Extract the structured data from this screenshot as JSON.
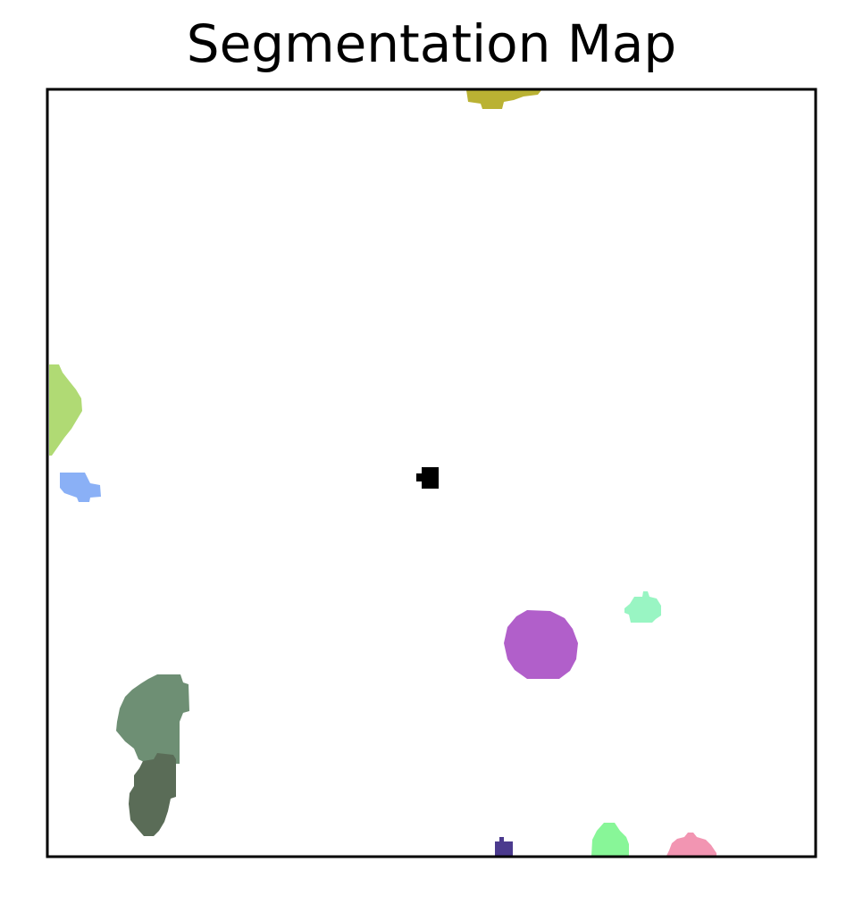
{
  "title": "Segmentation Map",
  "background_color": "#ffffff",
  "frame_color": "#000000",
  "segments": [
    {
      "name": "olive-segment",
      "color": "#bab233"
    },
    {
      "name": "lime-segment",
      "color": "#b0da74"
    },
    {
      "name": "blue-segment",
      "color": "#8ab0f6"
    },
    {
      "name": "black-segment",
      "color": "#000000"
    },
    {
      "name": "purple-segment",
      "color": "#b15fca"
    },
    {
      "name": "mint-segment",
      "color": "#99f5c3"
    },
    {
      "name": "sage-segment",
      "color": "#6e8f74"
    },
    {
      "name": "dark-green-segment",
      "color": "#5a6c57"
    },
    {
      "name": "indigo-segment",
      "color": "#4b3a8e"
    },
    {
      "name": "green-segment",
      "color": "#88f698"
    },
    {
      "name": "pink-segment",
      "color": "#f295b2"
    }
  ]
}
